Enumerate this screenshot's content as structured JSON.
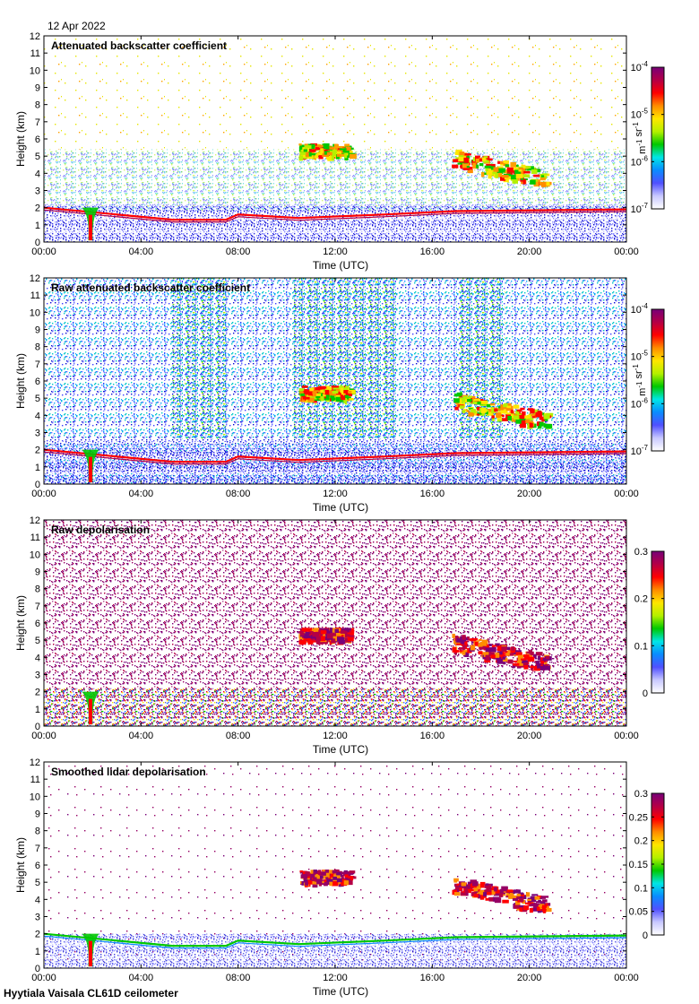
{
  "date_text": "12 Apr 2022",
  "footer_text": "Hyytiala Vaisala CL61D ceilometer",
  "colors": {
    "ramp": [
      "#ffffff",
      "#c8c8ff",
      "#5a5aff",
      "#1414d2",
      "#0a8cff",
      "#00e6e6",
      "#00c800",
      "#b4f000",
      "#ffe600",
      "#ff8c00",
      "#ff0000",
      "#b40046",
      "#780078"
    ]
  },
  "chart_data": [
    {
      "type": "heatmap",
      "title": "Attenuated backscatter coefficient",
      "xlabel": "Time (UTC)",
      "ylabel": "Height (km)",
      "x_ticks": [
        "00:00",
        "04:00",
        "08:00",
        "12:00",
        "16:00",
        "20:00",
        "00:00"
      ],
      "y_ticks": [
        "0",
        "1",
        "2",
        "3",
        "4",
        "5",
        "6",
        "7",
        "8",
        "9",
        "10",
        "11",
        "12"
      ],
      "xlim_hours": [
        0,
        24
      ],
      "ylim_km": [
        0,
        12
      ],
      "colorbar": {
        "scale": "log",
        "range": [
          1e-07,
          0.0001
        ],
        "tick_labels": [
          {
            "base": "10",
            "exp": "-7"
          },
          {
            "base": "10",
            "exp": "-6"
          },
          {
            "base": "10",
            "exp": "-5"
          },
          {
            "base": "10",
            "exp": "-4"
          }
        ],
        "label": "m-1 sr-1"
      },
      "features": {
        "boundary_layer_top_km": [
          [
            0,
            2.0
          ],
          [
            5.3,
            1.3
          ],
          [
            7.5,
            1.3
          ],
          [
            8.0,
            1.6
          ],
          [
            10.5,
            1.4
          ],
          [
            14,
            1.6
          ],
          [
            17,
            1.8
          ],
          [
            24,
            1.9
          ]
        ],
        "clouds": [
          {
            "t_start": 10.5,
            "t_end": 12.6,
            "z_low": 4.3,
            "z_high": 6.0
          },
          {
            "t_start": 16.8,
            "t_end": 20.7,
            "z_low": 3.5,
            "z_high": 5.8
          }
        ]
      }
    },
    {
      "type": "heatmap",
      "title": "Raw attenuated backscatter coefficient",
      "xlabel": "Time (UTC)",
      "ylabel": "Height (km)",
      "x_ticks": [
        "00:00",
        "04:00",
        "08:00",
        "12:00",
        "16:00",
        "20:00",
        "00:00"
      ],
      "y_ticks": [
        "0",
        "1",
        "2",
        "3",
        "4",
        "5",
        "6",
        "7",
        "8",
        "9",
        "10",
        "11",
        "12"
      ],
      "xlim_hours": [
        0,
        24
      ],
      "ylim_km": [
        0,
        12
      ],
      "colorbar": {
        "scale": "log",
        "range": [
          1e-07,
          0.0001
        ],
        "tick_labels": [
          {
            "base": "10",
            "exp": "-7"
          },
          {
            "base": "10",
            "exp": "-6"
          },
          {
            "base": "10",
            "exp": "-5"
          },
          {
            "base": "10",
            "exp": "-4"
          }
        ],
        "label": "m-1 sr-1"
      },
      "features": {
        "bright_columns_hours": [
          [
            5.3,
            7.5
          ],
          [
            10.3,
            14.5
          ],
          [
            17,
            19
          ]
        ],
        "clouds": [
          {
            "t_start": 10.5,
            "t_end": 12.6,
            "z_low": 4.3,
            "z_high": 6.0
          },
          {
            "t_start": 16.8,
            "t_end": 20.7,
            "z_low": 3.5,
            "z_high": 5.8
          }
        ]
      }
    },
    {
      "type": "heatmap",
      "title": "Raw depolarisation",
      "xlabel": "Time (UTC)",
      "ylabel": "Height (km)",
      "x_ticks": [
        "00:00",
        "04:00",
        "08:00",
        "12:00",
        "16:00",
        "20:00",
        "00:00"
      ],
      "y_ticks": [
        "0",
        "1",
        "2",
        "3",
        "4",
        "5",
        "6",
        "7",
        "8",
        "9",
        "10",
        "11",
        "12"
      ],
      "xlim_hours": [
        0,
        24
      ],
      "ylim_km": [
        0,
        12
      ],
      "colorbar": {
        "scale": "linear",
        "range": [
          0,
          0.3
        ],
        "tick_labels": [
          "0",
          "0.1",
          "0.2",
          "0.3"
        ]
      }
    },
    {
      "type": "heatmap",
      "title": "Smoothed lidar depolarisation",
      "xlabel": "Time (UTC)",
      "ylabel": "Height (km)",
      "x_ticks": [
        "00:00",
        "04:00",
        "08:00",
        "12:00",
        "16:00",
        "20:00",
        "00:00"
      ],
      "y_ticks": [
        "0",
        "1",
        "2",
        "3",
        "4",
        "5",
        "6",
        "7",
        "8",
        "9",
        "10",
        "11",
        "12"
      ],
      "xlim_hours": [
        0,
        24
      ],
      "ylim_km": [
        0,
        12
      ],
      "colorbar": {
        "scale": "linear",
        "range": [
          0,
          0.3
        ],
        "tick_labels": [
          "0",
          "0.05",
          "0.1",
          "0.15",
          "0.2",
          "0.25",
          "0.3"
        ]
      }
    }
  ]
}
